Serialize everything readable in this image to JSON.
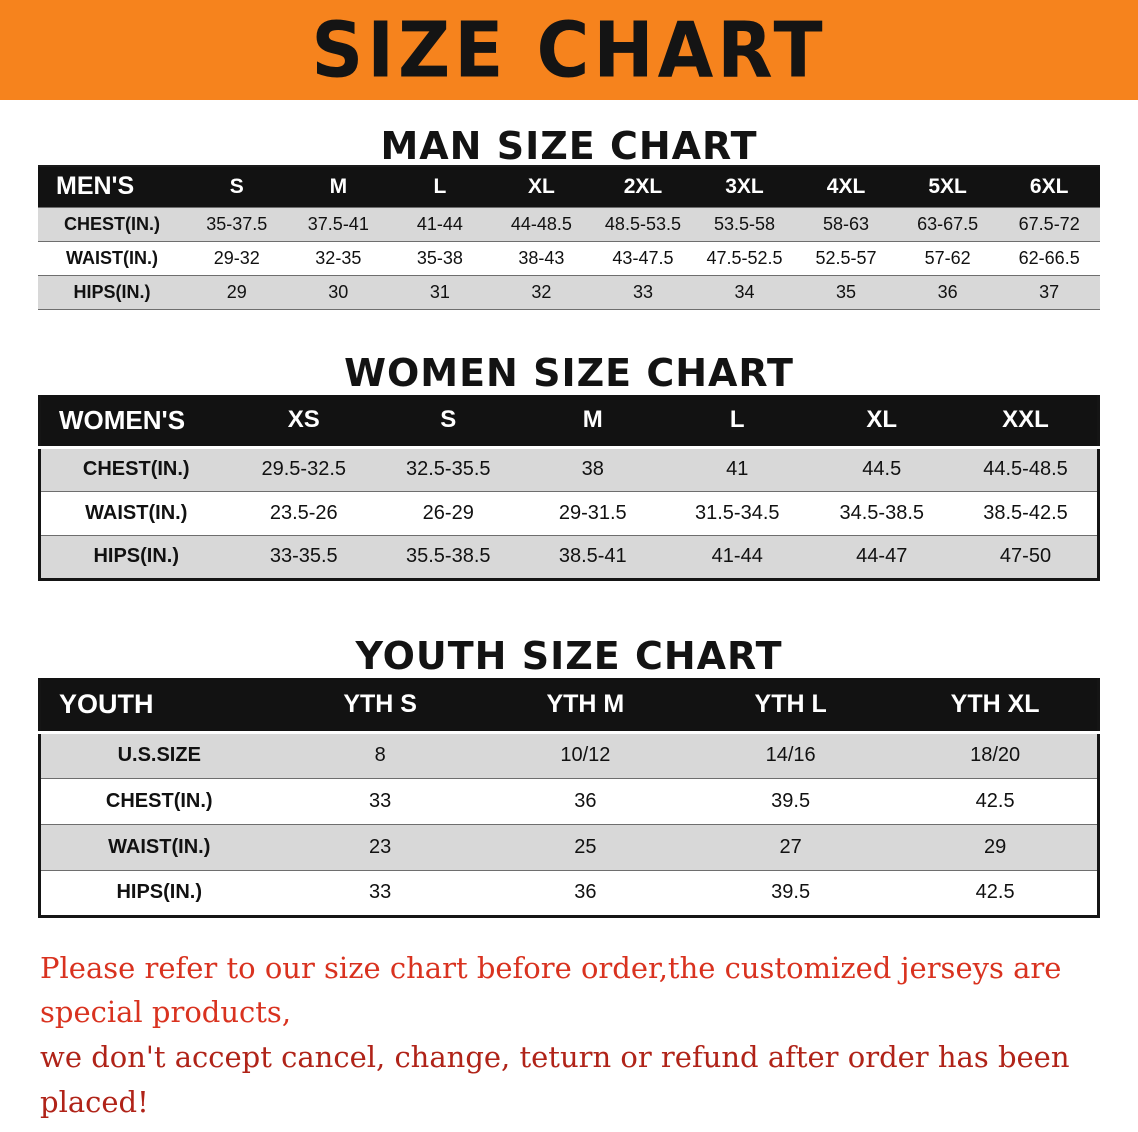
{
  "banner": {
    "title": "SIZE CHART",
    "bg_color": "#f6831d"
  },
  "tables": [
    {
      "heading": "MAN SIZE CHART",
      "header": [
        "MEN'S",
        "S",
        "M",
        "L",
        "XL",
        "2XL",
        "3XL",
        "4XL",
        "5XL",
        "6XL"
      ],
      "rows": [
        {
          "label": "CHEST(IN.)",
          "values": [
            "35-37.5",
            "37.5-41",
            "41-44",
            "44-48.5",
            "48.5-53.5",
            "53.5-58",
            "58-63",
            "63-67.5",
            "67.5-72"
          ]
        },
        {
          "label": "WAIST(IN.)",
          "values": [
            "29-32",
            "32-35",
            "35-38",
            "38-43",
            "43-47.5",
            "47.5-52.5",
            "52.5-57",
            "57-62",
            "62-66.5"
          ]
        },
        {
          "label": "HIPS(IN.)",
          "values": [
            "29",
            "30",
            "31",
            "32",
            "33",
            "34",
            "35",
            "36",
            "37"
          ]
        }
      ]
    },
    {
      "heading": "WOMEN SIZE CHART",
      "header": [
        "WOMEN'S",
        "XS",
        "S",
        "M",
        "L",
        "XL",
        "XXL"
      ],
      "rows": [
        {
          "label": "CHEST(IN.)",
          "values": [
            "29.5-32.5",
            "32.5-35.5",
            "38",
            "41",
            "44.5",
            "44.5-48.5"
          ]
        },
        {
          "label": "WAIST(IN.)",
          "values": [
            "23.5-26",
            "26-29",
            "29-31.5",
            "31.5-34.5",
            "34.5-38.5",
            "38.5-42.5"
          ]
        },
        {
          "label": "HIPS(IN.)",
          "values": [
            "33-35.5",
            "35.5-38.5",
            "38.5-41",
            "41-44",
            "44-47",
            "47-50"
          ]
        }
      ]
    },
    {
      "heading": "YOUTH SIZE CHART",
      "header": [
        "YOUTH",
        "YTH S",
        "YTH M",
        "YTH L",
        "YTH XL"
      ],
      "rows": [
        {
          "label": "U.S.SIZE",
          "values": [
            "8",
            "10/12",
            "14/16",
            "18/20"
          ]
        },
        {
          "label": "CHEST(IN.)",
          "values": [
            "33",
            "36",
            "39.5",
            "42.5"
          ]
        },
        {
          "label": "WAIST(IN.)",
          "values": [
            "23",
            "25",
            "27",
            "29"
          ]
        },
        {
          "label": "HIPS(IN.)",
          "values": [
            "33",
            "36",
            "39.5",
            "42.5"
          ]
        }
      ]
    }
  ],
  "footer": {
    "line1": "Please refer to our size chart before order,the customized jerseys are special products,",
    "line2": "we don't accept cancel, change, teturn or refund after order has been placed!",
    "text_color": "#c62a1c"
  }
}
